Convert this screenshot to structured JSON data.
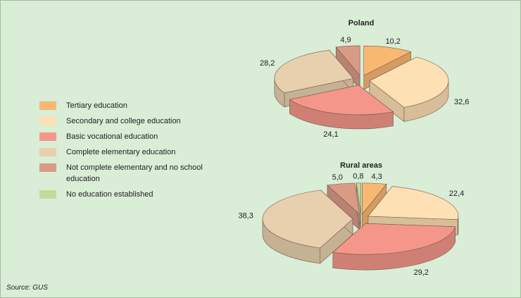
{
  "chart_data": [
    {
      "type": "pie",
      "title": "Poland",
      "categories": [
        "Tertiary education",
        "Secondary and college education",
        "Basic vocational education",
        "Complete elementary education",
        "Not complete elementary and no school education"
      ],
      "values": [
        10.2,
        32.6,
        24.1,
        28.2,
        4.9
      ],
      "value_labels": [
        "10,2",
        "32,6",
        "24,1",
        "28,2",
        "4,9"
      ],
      "colors": [
        "#f9b872",
        "#fde0b4",
        "#f4978a",
        "#e8d0ae",
        "#d99a86"
      ]
    },
    {
      "type": "pie",
      "title": "Rural areas",
      "categories": [
        "Tertiary education",
        "Secondary and college education",
        "Basic vocational education",
        "Complete elementary education",
        "Not complete elementary and no school education",
        "No education established"
      ],
      "values": [
        4.3,
        22.4,
        29.2,
        38.3,
        5.0,
        0.8
      ],
      "value_labels": [
        "4,3",
        "22,4",
        "29,2",
        "38,3",
        "5,0",
        "0,8"
      ],
      "colors": [
        "#f9b872",
        "#fde0b4",
        "#f4978a",
        "#e8d0ae",
        "#d99a86",
        "#c5d99a"
      ]
    }
  ],
  "source": "Source: GUS"
}
